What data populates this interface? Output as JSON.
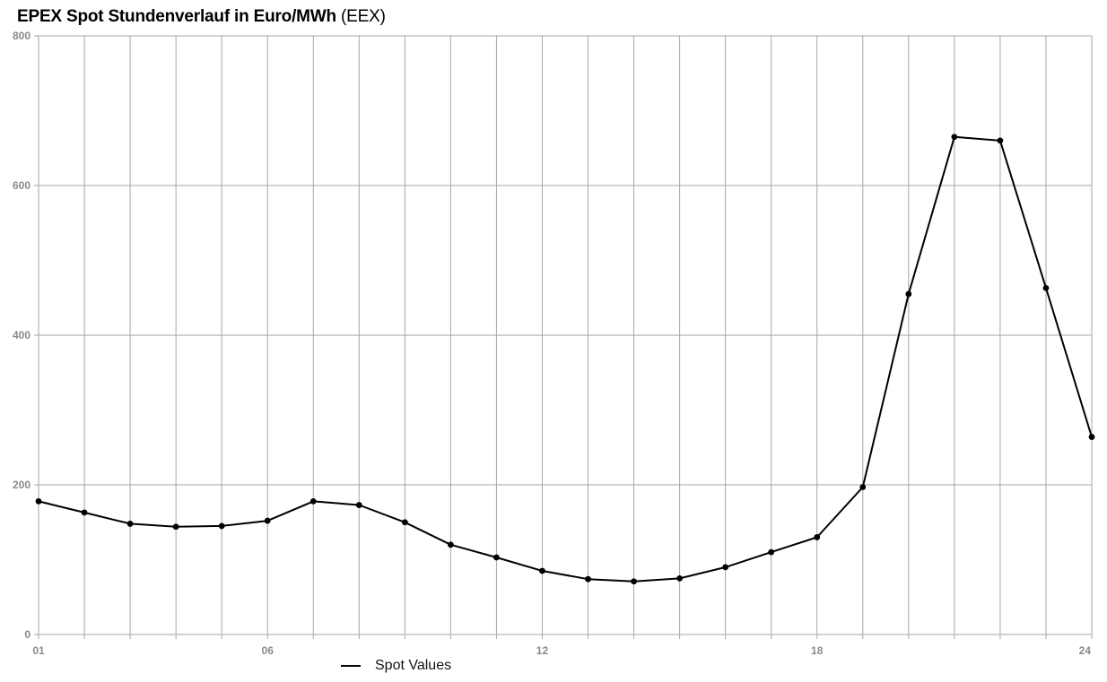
{
  "title": {
    "main": "EPEX Spot Stundenverlauf in Euro/MWh",
    "source": "(EEX)"
  },
  "legend": {
    "label": "Spot Values",
    "placement": "bottom-center"
  },
  "colors": {
    "line": "#000000",
    "grid": "#a6a6a6",
    "tick_text": "#8a8a8a"
  },
  "chart_data": {
    "type": "line",
    "title": "EPEX Spot Stundenverlauf in Euro/MWh (EEX)",
    "xlabel": "",
    "ylabel": "",
    "x": [
      1,
      2,
      3,
      4,
      5,
      6,
      7,
      8,
      9,
      10,
      11,
      12,
      13,
      14,
      15,
      16,
      17,
      18,
      19,
      20,
      21,
      22,
      23,
      24
    ],
    "x_tick_labels": [
      "01",
      "06",
      "12",
      "18",
      "24"
    ],
    "x_tick_values": [
      1,
      6,
      12,
      18,
      24
    ],
    "y_tick_labels": [
      "0",
      "200",
      "400",
      "600",
      "800"
    ],
    "y_tick_values": [
      0,
      200,
      400,
      600,
      800
    ],
    "xlim": [
      1,
      24
    ],
    "ylim": [
      0,
      800
    ],
    "grid": true,
    "series": [
      {
        "name": "Spot Values",
        "values": [
          178,
          163,
          148,
          144,
          145,
          152,
          178,
          173,
          150,
          120,
          103,
          85,
          74,
          71,
          75,
          90,
          110,
          130,
          197,
          455,
          665,
          660,
          463,
          264
        ]
      }
    ]
  }
}
